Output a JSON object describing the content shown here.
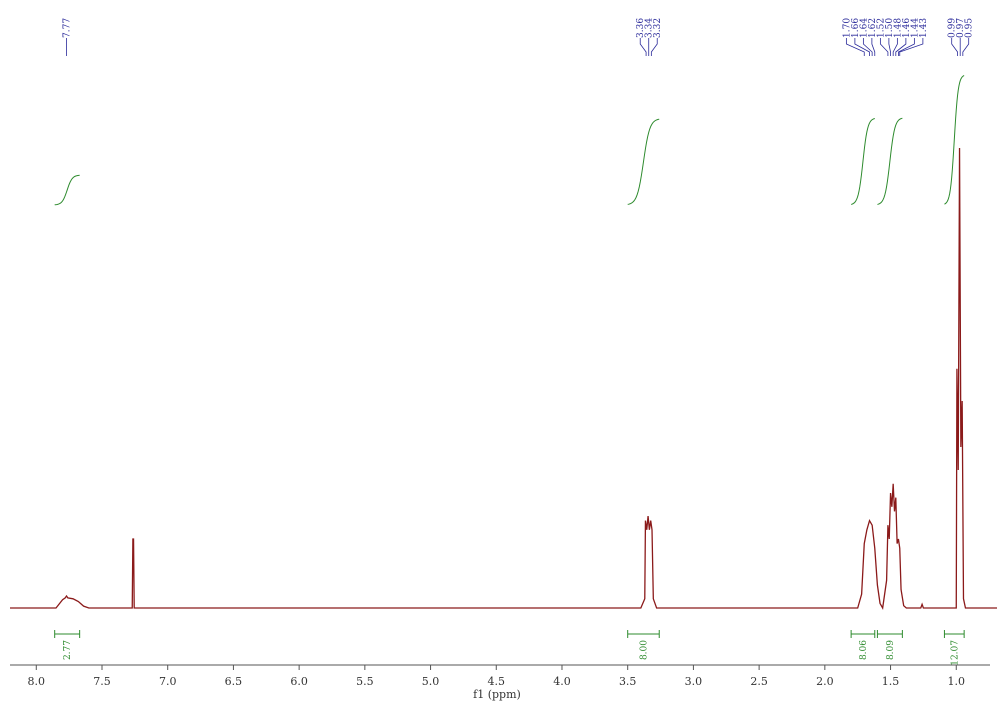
{
  "chart_data": {
    "type": "spectrum",
    "xlabel": "f1 (ppm)",
    "xlim": [
      8.2,
      0.69
    ],
    "xticks": [
      {
        "value": 8,
        "label": "8.0"
      },
      7.5,
      {
        "value": 7,
        "label": "7.0"
      },
      6.5,
      {
        "value": 6,
        "label": "6.0"
      },
      5.5,
      {
        "value": 5,
        "label": "5.0"
      },
      4.5,
      {
        "value": 4,
        "label": "4.0"
      },
      3.5,
      {
        "value": 3,
        "label": "3.0"
      },
      2.5,
      {
        "value": 2,
        "label": "2.0"
      },
      1.5,
      {
        "value": 1,
        "label": "1.0"
      }
    ],
    "ylim": [
      0,
      100
    ],
    "series": [
      {
        "color": "#8b1a1a",
        "x": [
          8.2,
          7.85,
          7.8,
          7.78,
          7.77,
          7.76,
          7.72,
          7.68,
          7.64,
          7.6,
          7.27,
          7.265,
          7.26,
          7.255,
          3.4,
          3.37,
          3.365,
          3.355,
          3.345,
          3.335,
          3.325,
          3.315,
          3.305,
          3.28,
          1.75,
          1.72,
          1.7,
          1.68,
          1.66,
          1.64,
          1.62,
          1.6,
          1.58,
          1.56,
          1.53,
          1.52,
          1.51,
          1.5,
          1.49,
          1.48,
          1.47,
          1.46,
          1.45,
          1.44,
          1.43,
          1.42,
          1.4,
          1.38,
          1.27,
          1.26,
          1.25,
          1.0,
          0.995,
          0.985,
          0.975,
          0.965,
          0.955,
          0.945,
          0.93,
          0.69
        ],
        "values": [
          0,
          0,
          1.8,
          2.2,
          2.6,
          2.2,
          2.0,
          1.4,
          0.4,
          0,
          0,
          15,
          15,
          0,
          0,
          2,
          19,
          17,
          20,
          17,
          19,
          17,
          2,
          0,
          0,
          3,
          14,
          17,
          19,
          18,
          13,
          5,
          1,
          0,
          6,
          18,
          15,
          25,
          22,
          27,
          21,
          24,
          14,
          15,
          13,
          4,
          0.5,
          0,
          0,
          0.8,
          0,
          0,
          52,
          30,
          100,
          35,
          45,
          2,
          0,
          0
        ]
      }
    ],
    "peaks": {
      "color": "#2a2a9a",
      "values": [
        7.77,
        3.36,
        3.34,
        3.32,
        1.7,
        1.66,
        1.64,
        1.62,
        1.52,
        1.5,
        1.48,
        1.46,
        1.44,
        1.43,
        0.99,
        0.97,
        0.95
      ],
      "value_labels": [
        "7.77",
        "3.36",
        "3.34",
        "3.32",
        "1.70",
        "1.66",
        "1.64",
        "1.62",
        "1.52",
        "1.50",
        "1.48",
        "1.46",
        "1.44",
        "1.43",
        "0.99",
        "0.97",
        "0.95"
      ]
    },
    "integrals": {
      "color": "#2e8b2e",
      "ranges": [
        [
          7.86,
          7.67
        ],
        [
          3.5,
          3.26
        ],
        [
          1.8,
          1.62
        ],
        [
          1.6,
          1.41
        ],
        [
          1.09,
          0.94
        ]
      ],
      "values": [
        2.77,
        8,
        8.06,
        8.09,
        12.07
      ],
      "value_labels": [
        "2.77",
        "8.00",
        "8.06",
        "8.09",
        "12.07"
      ]
    }
  }
}
